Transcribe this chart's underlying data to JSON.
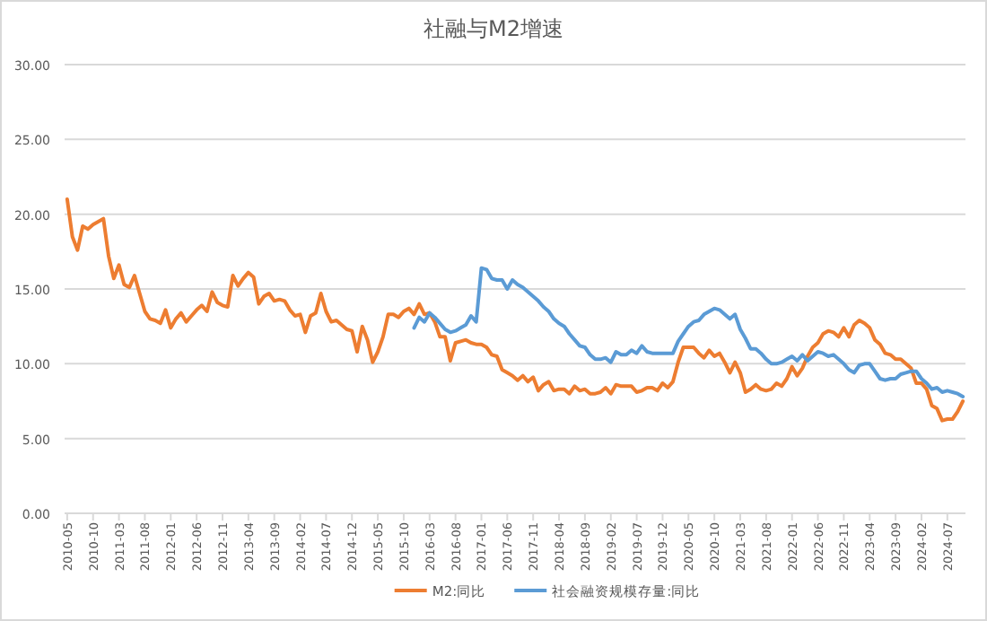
{
  "chart_data": {
    "type": "line",
    "title": "社融与M2增速",
    "categories": [
      "2010-05",
      null,
      null,
      null,
      null,
      "2010-10",
      null,
      null,
      null,
      null,
      "2011-03",
      null,
      null,
      null,
      null,
      "2011-08",
      null,
      null,
      null,
      null,
      "2012-01",
      null,
      null,
      null,
      null,
      "2012-06",
      null,
      null,
      null,
      null,
      "2012-11",
      null,
      null,
      null,
      null,
      "2013-04",
      null,
      null,
      null,
      null,
      "2013-09",
      null,
      null,
      null,
      null,
      "2014-02",
      null,
      null,
      null,
      null,
      "2014-07",
      null,
      null,
      null,
      null,
      "2014-12",
      null,
      null,
      null,
      null,
      "2015-05",
      null,
      null,
      null,
      null,
      "2015-10",
      null,
      null,
      null,
      null,
      "2016-03",
      null,
      null,
      null,
      null,
      "2016-08",
      null,
      null,
      null,
      null,
      "2017-01",
      null,
      null,
      null,
      null,
      "2017-06",
      null,
      null,
      null,
      null,
      "2017-11",
      null,
      null,
      null,
      null,
      "2018-04",
      null,
      null,
      null,
      null,
      "2018-09",
      null,
      null,
      null,
      null,
      "2019-02",
      null,
      null,
      null,
      null,
      "2019-07",
      null,
      null,
      null,
      null,
      "2019-12",
      null,
      null,
      null,
      null,
      "2020-05",
      null,
      null,
      null,
      null,
      "2020-10",
      null,
      null,
      null,
      null,
      "2021-03",
      null,
      null,
      null,
      null,
      "2021-08",
      null,
      null,
      null,
      null,
      "2022-01",
      null,
      null,
      null,
      null,
      "2022-06",
      null,
      null,
      null,
      null,
      "2022-11",
      null,
      null,
      null,
      null,
      "2023-04",
      null,
      null,
      null,
      null,
      "2023-09",
      null,
      null,
      null,
      null,
      "2024-02",
      null,
      null,
      null,
      null,
      "2024-07",
      null,
      null,
      null
    ],
    "series": [
      {
        "name": "M2:同比",
        "color": "#ed7d31",
        "values": [
          21.0,
          18.5,
          17.6,
          19.2,
          19.0,
          19.3,
          19.5,
          19.7,
          17.2,
          15.7,
          16.6,
          15.3,
          15.1,
          15.9,
          14.7,
          13.5,
          13.0,
          12.9,
          12.7,
          13.6,
          12.4,
          13.0,
          13.4,
          12.8,
          13.2,
          13.6,
          13.9,
          13.5,
          14.8,
          14.1,
          13.9,
          13.8,
          15.9,
          15.2,
          15.7,
          16.1,
          15.8,
          14.0,
          14.5,
          14.7,
          14.2,
          14.3,
          14.2,
          13.6,
          13.2,
          13.3,
          12.1,
          13.2,
          13.4,
          14.7,
          13.5,
          12.8,
          12.9,
          12.6,
          12.3,
          12.2,
          10.8,
          12.5,
          11.6,
          10.1,
          10.8,
          11.8,
          13.3,
          13.3,
          13.1,
          13.5,
          13.7,
          13.3,
          14.0,
          13.3,
          13.4,
          12.8,
          11.8,
          11.8,
          10.2,
          11.4,
          11.5,
          11.6,
          11.4,
          11.3,
          11.3,
          11.1,
          10.6,
          10.5,
          9.6,
          9.4,
          9.2,
          8.9,
          9.2,
          8.8,
          9.1,
          8.2,
          8.6,
          8.8,
          8.2,
          8.3,
          8.3,
          8.0,
          8.5,
          8.2,
          8.3,
          8.0,
          8.0,
          8.1,
          8.4,
          8.0,
          8.6,
          8.5,
          8.5,
          8.5,
          8.1,
          8.2,
          8.4,
          8.4,
          8.2,
          8.7,
          8.4,
          8.8,
          10.1,
          11.1,
          11.1,
          11.1,
          10.7,
          10.4,
          10.9,
          10.5,
          10.7,
          10.1,
          9.4,
          10.1,
          9.4,
          8.1,
          8.3,
          8.6,
          8.3,
          8.2,
          8.3,
          8.7,
          8.5,
          9.0,
          9.8,
          9.2,
          9.7,
          10.5,
          11.1,
          11.4,
          12.0,
          12.2,
          12.1,
          11.8,
          12.4,
          11.8,
          12.6,
          12.9,
          12.7,
          12.4,
          11.6,
          11.3,
          10.7,
          10.6,
          10.3,
          10.3,
          10.0,
          9.7,
          8.7,
          8.7,
          8.3,
          7.2,
          7.0,
          6.2,
          6.3,
          6.3,
          6.8,
          7.5
        ]
      },
      {
        "name": "社会融资规模存量:同比",
        "color": "#5b9bd5",
        "values": [
          null,
          null,
          null,
          null,
          null,
          null,
          null,
          null,
          null,
          null,
          null,
          null,
          null,
          null,
          null,
          null,
          null,
          null,
          null,
          null,
          null,
          null,
          null,
          null,
          null,
          null,
          null,
          null,
          null,
          null,
          null,
          null,
          null,
          null,
          null,
          null,
          null,
          null,
          null,
          null,
          null,
          null,
          null,
          null,
          null,
          null,
          null,
          null,
          null,
          null,
          null,
          null,
          null,
          null,
          null,
          null,
          null,
          null,
          null,
          null,
          null,
          null,
          null,
          null,
          null,
          null,
          null,
          12.4,
          13.1,
          12.8,
          13.4,
          13.1,
          12.7,
          12.3,
          12.1,
          12.2,
          12.4,
          12.6,
          13.2,
          12.8,
          16.4,
          16.3,
          15.7,
          15.6,
          15.6,
          15.0,
          15.6,
          15.3,
          15.1,
          14.8,
          14.5,
          14.2,
          13.8,
          13.5,
          13.0,
          12.7,
          12.5,
          12.0,
          11.6,
          11.2,
          11.1,
          10.6,
          10.3,
          10.3,
          10.4,
          10.1,
          10.8,
          10.6,
          10.6,
          10.9,
          10.7,
          11.2,
          10.8,
          10.7,
          10.7,
          10.7,
          10.7,
          10.7,
          11.5,
          12.0,
          12.5,
          12.8,
          12.9,
          13.3,
          13.5,
          13.7,
          13.6,
          13.3,
          13.0,
          13.3,
          12.3,
          11.7,
          11.0,
          11.0,
          10.7,
          10.3,
          10.0,
          10.0,
          10.1,
          10.3,
          10.5,
          10.2,
          10.6,
          10.2,
          10.5,
          10.8,
          10.7,
          10.5,
          10.6,
          10.3,
          10.0,
          9.6,
          9.4,
          9.9,
          10.0,
          10.0,
          9.5,
          9.0,
          8.9,
          9.0,
          9.0,
          9.3,
          9.4,
          9.5,
          9.5,
          9.0,
          8.7,
          8.3,
          8.4,
          8.1,
          8.2,
          8.1,
          8.0,
          7.8
        ]
      }
    ],
    "ylim": [
      0,
      30
    ],
    "yticks": [
      {
        "value": 0,
        "label": "0.00"
      },
      {
        "value": 5,
        "label": "5.00"
      },
      {
        "value": 10,
        "label": "10.00"
      },
      {
        "value": 15,
        "label": "15.00"
      },
      {
        "value": 20,
        "label": "20.00"
      },
      {
        "value": 25,
        "label": "25.00"
      },
      {
        "value": 30,
        "label": "30.00"
      }
    ],
    "grid": "y",
    "legend": "bottom",
    "marker": "none",
    "line_style": "solid"
  }
}
